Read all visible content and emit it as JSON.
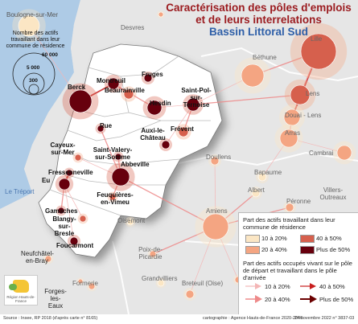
{
  "title": {
    "line1": "Caractérisation des pôles d'emplois",
    "line2": "et de leurs interrelations",
    "line3": "Bassin Littoral Sud"
  },
  "size_legend": {
    "title": "Nombre des actifs travaillant dans leur commune de résidence",
    "values": [
      "60 000",
      "5 000",
      "300"
    ]
  },
  "legend": {
    "part1_title": "Part des actifs travaillant dans leur commune de résidence",
    "part1_items": [
      "10 à 20%",
      "20 à 40%",
      "40 à 50%",
      "Plus de 50%"
    ],
    "part1_colors": [
      "#fbe6c4",
      "#f4a582",
      "#d6604d",
      "#67000d"
    ],
    "part2_title": "Part des actifs occupés vivant sur le pôle de départ et travaillant dans le pôle d'arrivée",
    "part2_items": [
      "10 à 20%",
      "20 à 40%",
      "40 à 50%",
      "Plus de 50%"
    ],
    "part2_colors": [
      "#f4b6b6",
      "#ee8a8a",
      "#c81e1e",
      "#6b0000"
    ]
  },
  "places_main": [
    "Boulogne-sur-Mer",
    "Montreuil",
    "Beaurainville",
    "Fruges",
    "Saint-Pol-sur-Ternoise",
    "Berck",
    "Hesdin",
    "Rue",
    "Auxi-le-Château",
    "Frévent",
    "Cayeux-sur-Mer",
    "Saint-Valery-sur-Somme",
    "Abbeville",
    "Fressenneville",
    "Eu",
    "Feuquières-en-Vimeu",
    "Gamaches",
    "Blangy-sur-Bresle",
    "Foucarmont",
    "Neufchâtel-en-Bray",
    "Forges-les-Eaux"
  ],
  "places_context": [
    "Desvres",
    "Lille",
    "Béthune",
    "Lens",
    "Douai - Lens",
    "Arras",
    "Cambrai",
    "Doullens",
    "Bapaume",
    "Albert",
    "Villers-Outreaux",
    "Péronne",
    "Amiens",
    "Oisemont",
    "Poix-de-Picardie",
    "Grandvilliers",
    "Breteuil (Oise)",
    "Formerie"
  ],
  "sea_label": "Le Tréport",
  "logo_text": "Région Hauts-de-France",
  "footer": {
    "source": "Source : Insee, RP 2018 (d'après carte n° 8165)",
    "credit": "cartographie : Agence Hauts-de-France 2020-2040",
    "date": "24 novembre 2022 n° 3837-03"
  }
}
